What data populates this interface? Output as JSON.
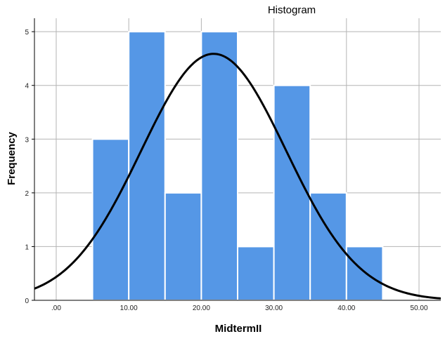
{
  "chart_data": {
    "type": "bar",
    "title": "Histogram",
    "xlabel": "MidtermII",
    "ylabel": "Frequency",
    "bins": [
      {
        "start": 5,
        "end": 10,
        "count": 3
      },
      {
        "start": 10,
        "end": 15,
        "count": 5
      },
      {
        "start": 15,
        "end": 20,
        "count": 2
      },
      {
        "start": 20,
        "end": 25,
        "count": 5
      },
      {
        "start": 25,
        "end": 30,
        "count": 1
      },
      {
        "start": 30,
        "end": 35,
        "count": 4
      },
      {
        "start": 35,
        "end": 40,
        "count": 2
      },
      {
        "start": 40,
        "end": 45,
        "count": 1
      }
    ],
    "xlim": [
      -3,
      53
    ],
    "ylim": [
      0,
      5.25
    ],
    "x_ticks": [
      0,
      10,
      20,
      30,
      40,
      50
    ],
    "x_tick_labels": [
      ".00",
      "10.00",
      "20.00",
      "30.00",
      "40.00",
      "50.00"
    ],
    "y_ticks": [
      0,
      1,
      2,
      3,
      4,
      5
    ],
    "y_tick_labels": [
      "0",
      "1",
      "2",
      "3",
      "4",
      "5"
    ],
    "normal_curve": {
      "mean": 21.7,
      "sd": 10.0,
      "n": 23,
      "bin_width": 5
    },
    "grid": true,
    "colors": {
      "bar": "#5597e6",
      "bar_edge": "#ffffff",
      "curve": "#000000",
      "grid": "#b4b4b4"
    }
  }
}
